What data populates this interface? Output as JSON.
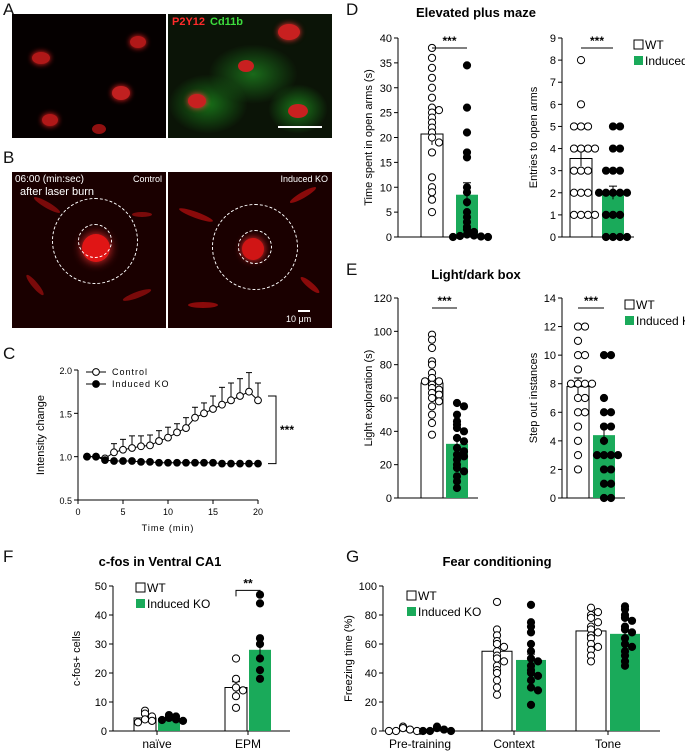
{
  "panels": {
    "A": "A",
    "B": "B",
    "C": "C",
    "D": "D",
    "E": "E",
    "F": "F",
    "G": "G"
  },
  "panelA": {
    "label_p2y12": "P2Y12",
    "label_cd11b": "Cd11b",
    "colors": {
      "p2y12": "#ff2a2a",
      "cd11b": "#3ddc3d"
    }
  },
  "panelB": {
    "timestamp": "06:00 (min:sec)",
    "subtitle": "after laser burn",
    "control": "Control",
    "ko": "Induced KO",
    "scale": "10 μm"
  },
  "colors": {
    "wt": "#ffffff",
    "ko": "#1aaa5a",
    "ko_dark": "#000000"
  },
  "chart_data": [
    {
      "id": "C",
      "type": "line",
      "xlabel": "Time (min)",
      "ylabel": "Intensity change",
      "xlim": [
        0,
        20
      ],
      "ylim": [
        0.5,
        2.0
      ],
      "xticks": [
        0,
        5,
        10,
        15,
        20
      ],
      "yticks": [
        "0.5",
        "1.0",
        "1.5",
        "2.0"
      ],
      "significance": "***",
      "series": [
        {
          "name": "Control",
          "x": [
            1,
            2,
            3,
            4,
            5,
            6,
            7,
            8,
            9,
            10,
            11,
            12,
            13,
            14,
            15,
            16,
            17,
            18,
            19,
            20
          ],
          "y": [
            1.0,
            1.0,
            0.98,
            1.05,
            1.08,
            1.1,
            1.12,
            1.13,
            1.18,
            1.22,
            1.28,
            1.33,
            1.45,
            1.5,
            1.55,
            1.6,
            1.65,
            1.7,
            1.75,
            1.65
          ],
          "err": [
            0,
            0,
            0.02,
            0.1,
            0.12,
            0.14,
            0.12,
            0.12,
            0.12,
            0.12,
            0.1,
            0.12,
            0.12,
            0.12,
            0.15,
            0.2,
            0.2,
            0.2,
            0.22,
            0.2
          ]
        },
        {
          "name": "Induced KO",
          "x": [
            1,
            2,
            3,
            4,
            5,
            6,
            7,
            8,
            9,
            10,
            11,
            12,
            13,
            14,
            15,
            16,
            17,
            18,
            19,
            20
          ],
          "y": [
            1.0,
            1.0,
            0.96,
            0.95,
            0.95,
            0.95,
            0.94,
            0.94,
            0.93,
            0.93,
            0.93,
            0.93,
            0.93,
            0.93,
            0.93,
            0.92,
            0.92,
            0.92,
            0.92,
            0.92
          ],
          "err": [
            0,
            0,
            0,
            0,
            0,
            0,
            0,
            0,
            0,
            0,
            0,
            0,
            0,
            0,
            0,
            0,
            0,
            0,
            0,
            0
          ]
        }
      ]
    },
    {
      "id": "D1",
      "type": "bar",
      "group_title": "Elevated plus maze",
      "ylabel": "Time spent in open arms (s)",
      "ylim": [
        0,
        40
      ],
      "yticks": [
        "0",
        "5",
        "10",
        "15",
        "20",
        "25",
        "30",
        "35",
        "40"
      ],
      "significance": "***",
      "categories": [
        "WT",
        "Induced KO"
      ],
      "values": [
        20.7,
        8.5
      ],
      "sem": [
        2.2,
        2.4
      ],
      "points": [
        [
          38,
          36,
          34,
          32,
          30,
          28,
          26,
          25.5,
          25,
          24,
          23,
          22,
          21,
          20,
          19,
          17,
          12,
          10,
          9,
          7.5,
          5
        ],
        [
          34.5,
          26,
          21,
          17,
          16,
          10,
          9,
          7,
          5,
          4,
          3,
          2,
          1.5,
          1,
          0.5,
          0.3,
          0.2,
          0.1,
          0,
          0
        ]
      ]
    },
    {
      "id": "D2",
      "type": "bar",
      "ylabel": "Entries to open arms",
      "ylim": [
        0,
        9
      ],
      "yticks": [
        "0",
        "1",
        "2",
        "3",
        "4",
        "5",
        "6",
        "7",
        "8",
        "9"
      ],
      "significance": "***",
      "legend": [
        "WT",
        "Induced KO"
      ],
      "categories": [
        "WT",
        "Induced KO"
      ],
      "values": [
        3.55,
        2.0
      ],
      "sem": [
        0.35,
        0.3
      ],
      "points": [
        [
          8,
          6,
          5,
          5,
          5,
          4,
          4,
          4,
          4,
          3,
          3,
          3,
          2,
          2,
          2,
          1,
          1,
          1,
          1
        ],
        [
          5,
          5,
          4,
          4,
          3,
          3,
          3,
          2,
          2,
          2,
          2,
          2,
          1,
          1,
          1,
          0,
          0,
          0,
          0
        ]
      ]
    },
    {
      "id": "E1",
      "type": "bar",
      "group_title": "Light/dark box",
      "ylabel": "Light exploration (s)",
      "ylim": [
        0,
        120
      ],
      "yticks": [
        "0",
        "20",
        "40",
        "60",
        "80",
        "100",
        "120"
      ],
      "significance": "***",
      "categories": [
        "WT",
        "Induced KO"
      ],
      "values": [
        69,
        32.5
      ],
      "sem": [
        4,
        4
      ],
      "points": [
        [
          98,
          95,
          90,
          82,
          80,
          75,
          72,
          70,
          70,
          68,
          66,
          65,
          63,
          62,
          60,
          58,
          55,
          50,
          45,
          38
        ],
        [
          57,
          55,
          50,
          46,
          44,
          42,
          40,
          36,
          34,
          30,
          28,
          26,
          25,
          23,
          20,
          18,
          16,
          13,
          10,
          6
        ]
      ]
    },
    {
      "id": "E2",
      "type": "bar",
      "ylabel": "Step out instances",
      "ylim": [
        0,
        14
      ],
      "yticks": [
        "0",
        "2",
        "4",
        "6",
        "8",
        "10",
        "12",
        "14"
      ],
      "significance": "***",
      "legend": [
        "WT",
        "Induced KO"
      ],
      "categories": [
        "WT",
        "Induced KO"
      ],
      "values": [
        7.8,
        4.4
      ],
      "sem": [
        0.6,
        0.7
      ],
      "points": [
        [
          12,
          12,
          11,
          10,
          10,
          9,
          8,
          8,
          8,
          8,
          7,
          7,
          6,
          6,
          5,
          4,
          3,
          2
        ],
        [
          10,
          10,
          7,
          6,
          6,
          5,
          5,
          4,
          3,
          3,
          3,
          3,
          2,
          2,
          1,
          1,
          0,
          0
        ]
      ]
    },
    {
      "id": "F",
      "type": "bar",
      "title": "c-fos in Ventral CA1",
      "ylabel": "c-fos+ cells",
      "ylim": [
        0,
        50
      ],
      "yticks": [
        "0",
        "10",
        "20",
        "30",
        "40",
        "50"
      ],
      "legend": [
        "WT",
        "Induced KO"
      ],
      "significance": "**",
      "categories": [
        "naïve",
        "EPM"
      ],
      "series": [
        {
          "name": "WT",
          "values": [
            4.5,
            15
          ],
          "sem": [
            1,
            2
          ]
        },
        {
          "name": "Induced KO",
          "values": [
            4.5,
            28
          ],
          "sem": [
            0.5,
            4
          ]
        }
      ],
      "points": {
        "WT": [
          [
            7,
            6,
            5,
            4,
            3.5,
            3
          ],
          [
            25,
            18,
            15,
            14,
            12,
            8
          ]
        ],
        "Induced KO": [
          [
            5.5,
            5,
            4.5,
            4,
            3.8,
            3.5
          ],
          [
            47,
            44,
            32,
            30,
            25,
            21,
            18
          ]
        ]
      }
    },
    {
      "id": "G",
      "type": "bar",
      "title": "Fear conditioning",
      "ylabel": "Freezing time (%)",
      "ylim": [
        0,
        100
      ],
      "yticks": [
        "0",
        "20",
        "40",
        "60",
        "80",
        "100"
      ],
      "legend": [
        "WT",
        "Induced KO"
      ],
      "categories": [
        "Pre-training",
        "Context",
        "Tone"
      ],
      "series": [
        {
          "name": "WT",
          "values": [
            1,
            55,
            69
          ],
          "sem": [
            0.5,
            4,
            3
          ]
        },
        {
          "name": "Induced KO",
          "values": [
            1,
            49,
            67
          ],
          "sem": [
            0.5,
            4,
            3
          ]
        }
      ],
      "points": {
        "WT": [
          [
            3,
            2,
            1,
            0,
            0,
            0
          ],
          [
            89,
            70,
            66,
            62,
            60,
            58,
            55,
            52,
            50,
            48,
            45,
            42,
            40,
            35,
            30,
            25
          ],
          [
            85,
            82,
            80,
            78,
            75,
            72,
            70,
            68,
            66,
            64,
            60,
            58,
            56,
            52,
            48
          ]
        ],
        "Induced KO": [
          [
            3,
            2,
            1,
            0,
            0,
            0
          ],
          [
            87,
            75,
            72,
            68,
            60,
            55,
            50,
            48,
            45,
            42,
            40,
            38,
            35,
            30,
            28,
            18
          ],
          [
            86,
            84,
            80,
            78,
            76,
            72,
            70,
            68,
            64,
            60,
            58,
            55,
            52,
            48,
            45
          ]
        ]
      }
    }
  ]
}
